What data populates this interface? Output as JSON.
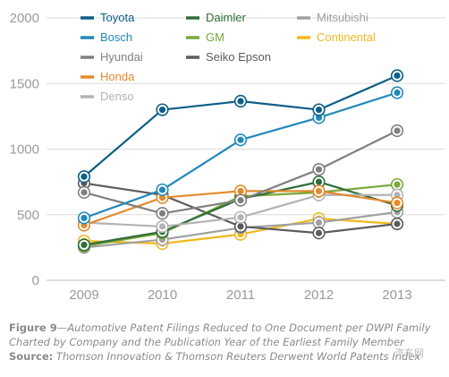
{
  "chart_data": {
    "type": "line",
    "x": [
      "2009",
      "2010",
      "2011",
      "2012",
      "2013"
    ],
    "ylim": [
      0,
      2000
    ],
    "yticks": [
      "0",
      "500",
      "1000",
      "1500",
      "2000"
    ],
    "grid": true,
    "legend_position": "top",
    "series": [
      {
        "name": "Toyota",
        "color": "#0c5f86",
        "values": [
          790,
          1300,
          1365,
          1300,
          1560
        ]
      },
      {
        "name": "Bosch",
        "color": "#2189b9",
        "values": [
          475,
          690,
          1070,
          1240,
          1430
        ]
      },
      {
        "name": "Hyundai",
        "color": "#808080",
        "values": [
          670,
          510,
          610,
          845,
          1140
        ]
      },
      {
        "name": "Honda",
        "color": "#e38a2c",
        "values": [
          420,
          630,
          680,
          680,
          590
        ]
      },
      {
        "name": "Denso",
        "color": "#b3b3b3",
        "values": [
          440,
          410,
          480,
          650,
          650
        ]
      },
      {
        "name": "Daimler",
        "color": "#2f6e3a",
        "values": [
          270,
          370,
          620,
          750,
          570
        ]
      },
      {
        "name": "GM",
        "color": "#79a83a",
        "values": [
          260,
          360,
          640,
          670,
          730
        ]
      },
      {
        "name": "Seiko Epson",
        "color": "#5c5c5c",
        "values": [
          740,
          650,
          410,
          360,
          430
        ]
      },
      {
        "name": "Mitsubishi",
        "color": "#a0a0a0",
        "values": [
          250,
          310,
          400,
          440,
          520
        ]
      },
      {
        "name": "Continental",
        "color": "#f2b81c",
        "values": [
          300,
          280,
          350,
          470,
          430
        ]
      }
    ],
    "legend_columns": [
      [
        "Toyota",
        "Bosch",
        "Hyundai",
        "Honda",
        "Denso"
      ],
      [
        "Daimler",
        "GM",
        "Seiko Epson"
      ],
      [
        "Mitsubishi",
        "Continental"
      ]
    ]
  },
  "caption": {
    "figure_label": "Figure 9",
    "title_line1": "—Automotive Patent Filings Reduced to One Document per DWPI Family",
    "title_line2": "Charted by Company and the Publication Year of the Earliest Family Member",
    "source_label": "Source:",
    "source_text": " Thomson Innovation & Thomson Reuters Derwent World Patents Index"
  },
  "watermark": "汽车网"
}
